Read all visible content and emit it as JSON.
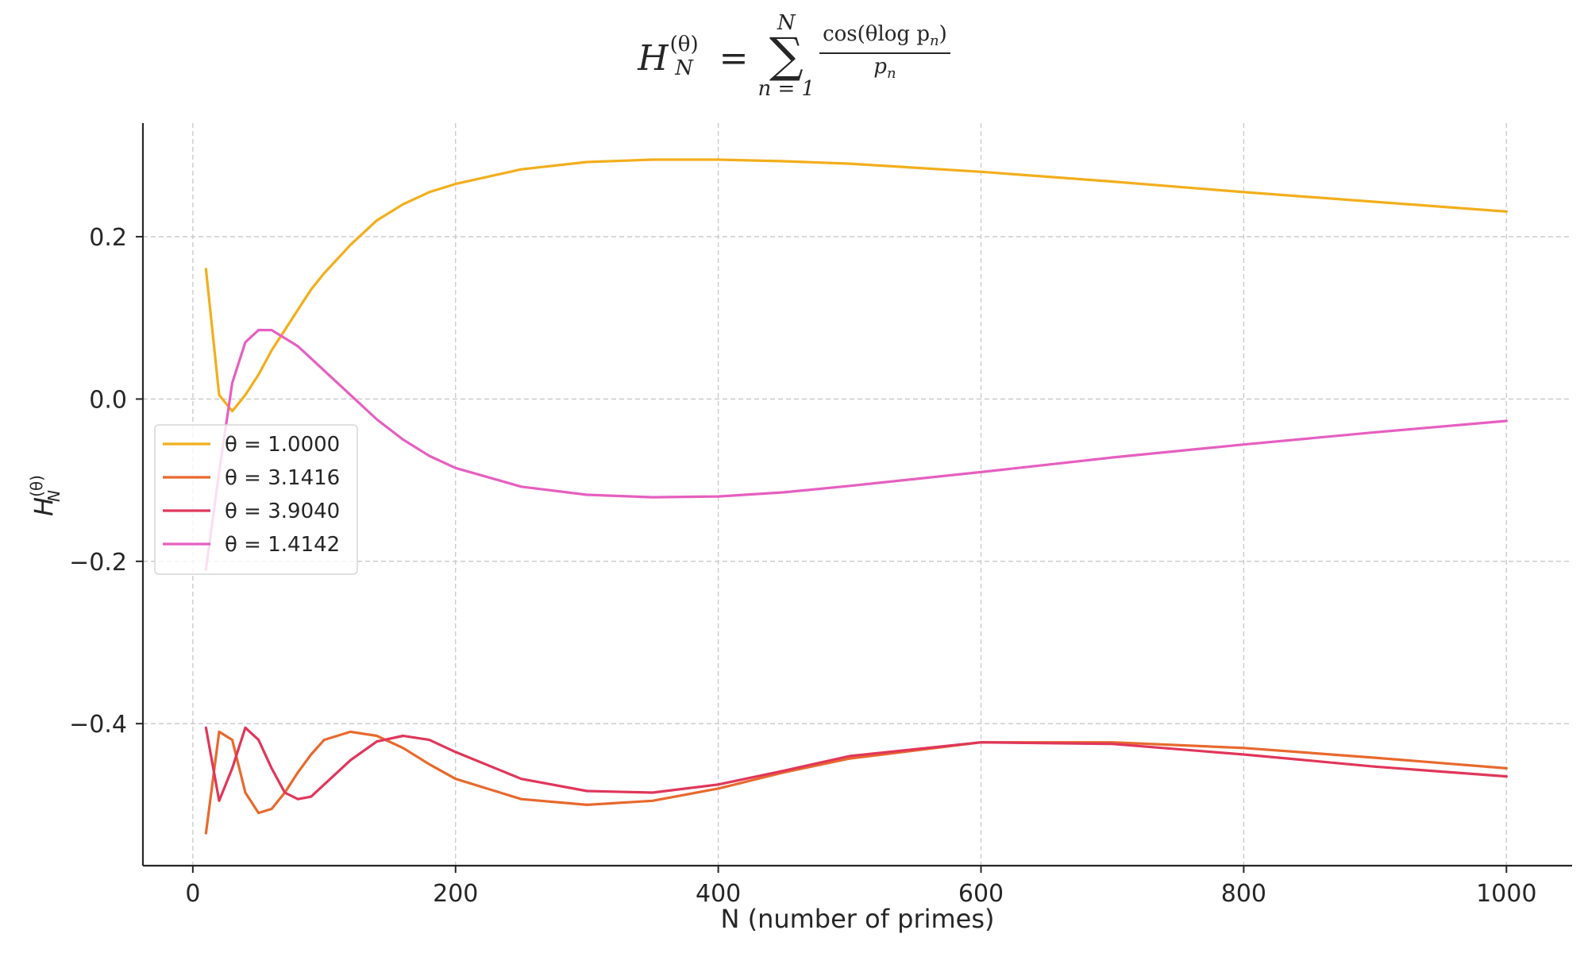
{
  "chart_data": {
    "type": "line",
    "title": "H_N^(θ) = Σ_{n=1}^{N} cos(θ log p_n) / p_n",
    "title_parts": {
      "lhs": "H",
      "lhs_sub": "N",
      "lhs_sup": "(θ)",
      "equals": "=",
      "sum_symbol": "∑",
      "sum_lower": "n = 1",
      "sum_upper": "N",
      "numerator": "cos(θlog p",
      "numerator_sub": "n",
      "numerator_close": ")",
      "denominator": "p",
      "denominator_sub": "n"
    },
    "xlabel": "N (number of primes)",
    "ylabel": {
      "base": "H",
      "sub": "N",
      "sup": "(θ)"
    },
    "xlim": [
      -38,
      1050
    ],
    "ylim": [
      -0.575,
      0.34
    ],
    "xticks": [
      0,
      200,
      400,
      600,
      800,
      1000
    ],
    "xtick_labels": [
      "0",
      "200",
      "400",
      "600",
      "800",
      "1000"
    ],
    "yticks": [
      0.2,
      0.0,
      -0.2,
      -0.4
    ],
    "ytick_labels": [
      "0.2",
      "0.0",
      "−0.2",
      "−0.4"
    ],
    "grid": true,
    "legend_position": "center-left",
    "x": [
      10,
      20,
      30,
      40,
      50,
      60,
      70,
      80,
      90,
      100,
      120,
      140,
      160,
      180,
      200,
      250,
      300,
      350,
      400,
      450,
      500,
      600,
      700,
      800,
      900,
      1000
    ],
    "series": [
      {
        "name": "θ = 1.0000",
        "color": "#f2ae1b",
        "values": [
          0.16,
          0.005,
          -0.015,
          0.005,
          0.03,
          0.06,
          0.085,
          0.11,
          0.135,
          0.155,
          0.19,
          0.22,
          0.24,
          0.255,
          0.265,
          0.283,
          0.292,
          0.295,
          0.295,
          0.293,
          0.29,
          0.28,
          0.268,
          0.255,
          0.243,
          0.231
        ]
      },
      {
        "name": "θ = 3.1416",
        "color": "#e8692d",
        "values": [
          -0.535,
          -0.41,
          -0.42,
          -0.485,
          -0.51,
          -0.505,
          -0.485,
          -0.46,
          -0.438,
          -0.42,
          -0.41,
          -0.415,
          -0.43,
          -0.45,
          -0.468,
          -0.493,
          -0.5,
          -0.495,
          -0.48,
          -0.46,
          -0.443,
          -0.423,
          -0.423,
          -0.43,
          -0.442,
          -0.455
        ]
      },
      {
        "name": "θ = 3.9040",
        "color": "#e0365a",
        "values": [
          -0.405,
          -0.495,
          -0.455,
          -0.405,
          -0.42,
          -0.455,
          -0.485,
          -0.493,
          -0.49,
          -0.475,
          -0.445,
          -0.422,
          -0.415,
          -0.42,
          -0.435,
          -0.468,
          -0.483,
          -0.485,
          -0.475,
          -0.458,
          -0.44,
          -0.423,
          -0.425,
          -0.438,
          -0.453,
          -0.465
        ]
      },
      {
        "name": "θ = 1.4142",
        "color": "#e65fc0",
        "values": [
          -0.21,
          -0.09,
          0.02,
          0.07,
          0.085,
          0.085,
          0.075,
          0.065,
          0.05,
          0.035,
          0.005,
          -0.025,
          -0.05,
          -0.07,
          -0.085,
          -0.108,
          -0.118,
          -0.121,
          -0.12,
          -0.115,
          -0.107,
          -0.09,
          -0.072,
          -0.056,
          -0.041,
          -0.027
        ]
      }
    ]
  }
}
